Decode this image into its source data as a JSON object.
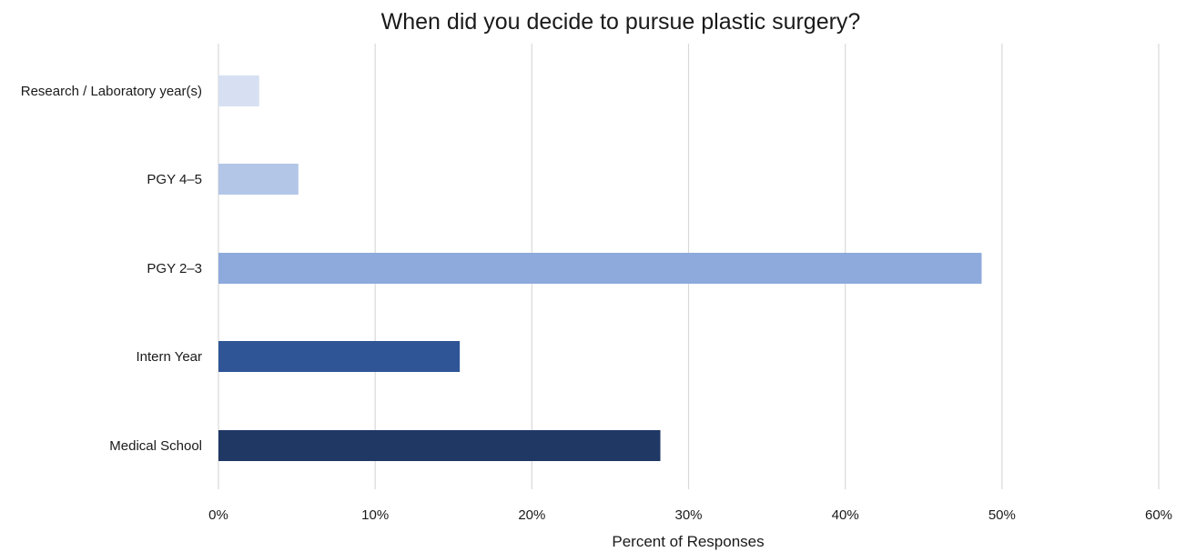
{
  "chart_data": {
    "type": "bar",
    "orientation": "horizontal",
    "title": "When did you decide to pursue plastic surgery?",
    "xlabel": "Percent of Responses",
    "ylabel": "",
    "xlim": [
      0,
      60
    ],
    "x_ticks": [
      0,
      10,
      20,
      30,
      40,
      50,
      60
    ],
    "x_tick_labels": [
      "0%",
      "10%",
      "20%",
      "30%",
      "40%",
      "50%",
      "60%"
    ],
    "categories": [
      "Research / Laboratory year(s)",
      "PGY 4–5",
      "PGY 2–3",
      "Intern Year",
      "Medical School"
    ],
    "values": [
      2.6,
      5.1,
      48.7,
      15.4,
      28.2
    ],
    "colors": [
      "#d6e0f2",
      "#b3c6e7",
      "#8eaadc",
      "#2f5597",
      "#1f3864"
    ],
    "grid": true,
    "legend": "none"
  }
}
